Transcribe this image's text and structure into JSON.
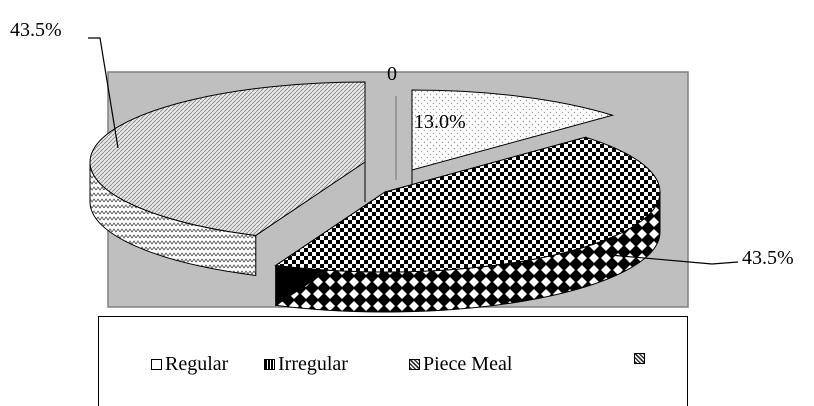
{
  "chart_data": {
    "type": "pie",
    "style": "3d-exploded",
    "categories": [
      "Regular",
      "Irregular",
      "Piece Meal",
      ""
    ],
    "values": [
      13.0,
      0,
      43.5,
      43.5
    ],
    "data_labels": [
      "13.0%",
      "0",
      "43.5%",
      "43.5%"
    ],
    "legend_position": "bottom",
    "plot_background": "#bfbfbf",
    "colors": [
      "#ffffff",
      "#000000",
      "#cccccc",
      "#000000"
    ]
  }
}
